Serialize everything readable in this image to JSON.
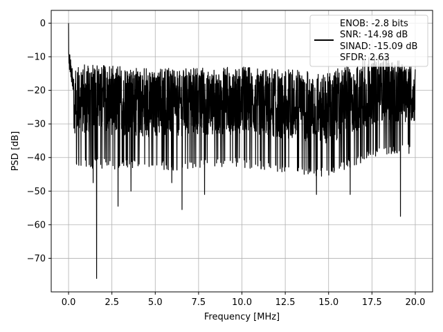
{
  "chart_data": {
    "type": "line",
    "xlabel": "Frequency [MHz]",
    "ylabel": "PSD [dB]",
    "xlim": [
      -1.0,
      21.0
    ],
    "ylim": [
      -80.0,
      3.8
    ],
    "xticks": [
      0.0,
      2.5,
      5.0,
      7.5,
      10.0,
      12.5,
      15.0,
      17.5,
      20.0
    ],
    "xtick_labels": [
      "0.0",
      "2.5",
      "5.0",
      "7.5",
      "10.0",
      "12.5",
      "15.0",
      "17.5",
      "20.0"
    ],
    "yticks": [
      0,
      -10,
      -20,
      -30,
      -40,
      -50,
      -60,
      -70
    ],
    "ytick_labels": [
      "0",
      "−10",
      "−20",
      "−30",
      "−40",
      "−50",
      "−60",
      "−70"
    ],
    "grid": true,
    "legend_placement": "top-right",
    "legend_entries": [
      "ENOB: -2.8 bits",
      "SNR: -14.98 dB",
      "SINAD: -15.09 dB",
      "SFDR: 2.63"
    ],
    "line_color": "#000000",
    "series": [
      {
        "x_start": 0.0,
        "x_end": 20.0,
        "spikes": [
          {
            "x": 0.0,
            "y": 0.0
          },
          {
            "x": 0.04,
            "y": -12.0
          },
          {
            "x": 1.42,
            "y": -47.5
          },
          {
            "x": 1.62,
            "y": -76.0
          },
          {
            "x": 2.85,
            "y": -54.5
          },
          {
            "x": 3.6,
            "y": -50.0
          },
          {
            "x": 5.95,
            "y": -47.5
          },
          {
            "x": 6.55,
            "y": -55.5
          },
          {
            "x": 7.85,
            "y": -51.0
          },
          {
            "x": 14.3,
            "y": -51.0
          },
          {
            "x": 16.25,
            "y": -51.0
          },
          {
            "x": 19.15,
            "y": -57.5
          },
          {
            "x": 18.3,
            "y": -10.0
          }
        ],
        "envelope": [
          {
            "x": 0.5,
            "upper": -15.0,
            "lower": -40.0
          },
          {
            "x": 5.0,
            "upper": -16.5,
            "lower": -41.0
          },
          {
            "x": 10.0,
            "upper": -16.0,
            "lower": -40.0
          },
          {
            "x": 15.0,
            "upper": -17.5,
            "lower": -43.0
          },
          {
            "x": 18.0,
            "upper": -12.0,
            "lower": -36.0
          },
          {
            "x": 20.0,
            "upper": -16.0,
            "lower": -36.0
          }
        ]
      }
    ]
  }
}
